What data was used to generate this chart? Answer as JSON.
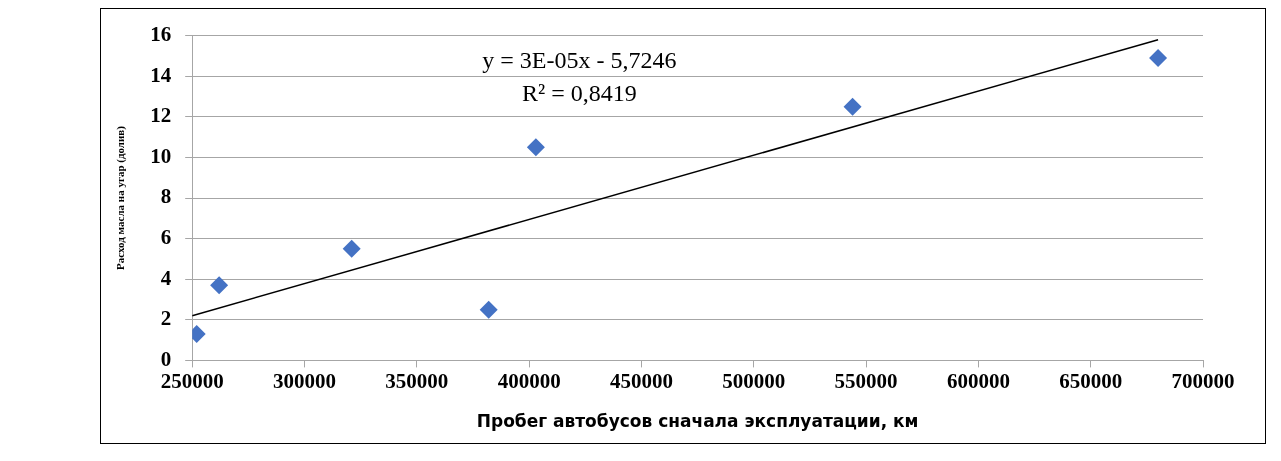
{
  "chart_data": {
    "type": "scatter",
    "xlabel": "Пробег автобусов сначала эксплуатации, км",
    "ylabel": "Расход масла на угар (долив)",
    "annotations": [
      "y = 3E-05x - 5,7246",
      "R² = 0,8419"
    ],
    "series": [
      {
        "type": "scatter",
        "color": "#4472c4",
        "marker": "diamond",
        "x": [
          252000,
          262000,
          321000,
          382000,
          403000,
          544000,
          680000
        ],
        "values": [
          1.3,
          3.7,
          5.5,
          2.5,
          10.5,
          12.5,
          14.9
        ]
      },
      {
        "type": "line",
        "color": "#000000",
        "marker": "none",
        "line_style": "solid",
        "x": [
          250000,
          680000
        ],
        "values": [
          2.2,
          15.8
        ]
      }
    ],
    "xlim": [
      250000,
      700000
    ],
    "xticks": [
      250000,
      300000,
      350000,
      400000,
      450000,
      500000,
      550000,
      600000,
      650000,
      700000
    ],
    "ylim": [
      0,
      16
    ],
    "yticks": [
      0,
      2,
      4,
      6,
      8,
      10,
      12,
      14,
      16
    ],
    "grid": "y",
    "legend": false
  }
}
